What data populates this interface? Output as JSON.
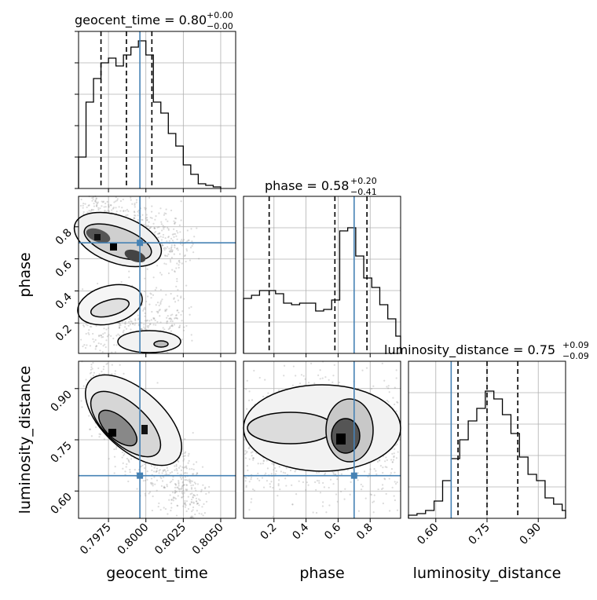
{
  "chart_data": {
    "type": "corner",
    "parameters": [
      "geocent_time",
      "phase",
      "luminosity_distance"
    ],
    "truths": {
      "geocent_time": 0.7996,
      "phase": 0.7,
      "luminosity_distance": 0.645
    },
    "titles": [
      {
        "param": "geocent_time",
        "base": "geocent_time = 0.80",
        "plus": "+0.00",
        "minus": "−0.00"
      },
      {
        "param": "phase",
        "base": "phase = 0.58",
        "plus": "+0.20",
        "minus": "−0.41"
      },
      {
        "param": "luminosity_distance",
        "base": "luminosity_distance = 0.75",
        "plus": "+0.09",
        "minus": "−0.09"
      }
    ],
    "axis_labels": {
      "x": [
        "geocent_time",
        "phase",
        "luminosity_distance"
      ],
      "y": [
        "phase",
        "luminosity_distance"
      ]
    },
    "ranges": {
      "geocent_time": [
        0.7955,
        0.806
      ],
      "phase": [
        0.01,
        0.99
      ],
      "luminosity_distance": [
        0.52,
        0.98
      ]
    },
    "ticks": {
      "geocent_time": {
        "values": [
          0.7975,
          0.8,
          0.8025,
          0.805
        ],
        "labels": [
          "0.7975",
          "0.8000",
          "0.8025",
          "0.8050"
        ]
      },
      "phase_x": {
        "values": [
          0.2,
          0.4,
          0.6,
          0.8
        ],
        "labels": [
          "0.2",
          "0.4",
          "0.6",
          "0.8"
        ]
      },
      "phase_y": {
        "values": [
          0.2,
          0.4,
          0.6,
          0.8
        ],
        "labels": [
          "0.2",
          "0.4",
          "0.6",
          "0.8"
        ]
      },
      "luminosity_distance": {
        "values": [
          0.6,
          0.75,
          0.9
        ],
        "labels": [
          "0.60",
          "0.75",
          "0.90"
        ]
      }
    },
    "histograms": {
      "geocent_time": {
        "edges": [
          0.7955,
          0.796,
          0.7965,
          0.797,
          0.7975,
          0.798,
          0.7985,
          0.799,
          0.7995,
          0.8,
          0.8005,
          0.801,
          0.8015,
          0.802,
          0.8025,
          0.803,
          0.8035,
          0.804,
          0.8045,
          0.805
        ],
        "counts": [
          20,
          55,
          70,
          80,
          83,
          78,
          85,
          90,
          94,
          85,
          55,
          48,
          35,
          27,
          15,
          9,
          3,
          2,
          1
        ],
        "ymax": 100,
        "quantiles": [
          0.797,
          0.7987,
          0.8004
        ]
      },
      "phase": {
        "edges": [
          0.01,
          0.06,
          0.11,
          0.16,
          0.21,
          0.26,
          0.31,
          0.36,
          0.41,
          0.46,
          0.51,
          0.56,
          0.61,
          0.66,
          0.71,
          0.76,
          0.81,
          0.86,
          0.91,
          0.96,
          0.99
        ],
        "counts": [
          35,
          37,
          40,
          40,
          38,
          32,
          31,
          32,
          32,
          27,
          28,
          34,
          78,
          80,
          62,
          48,
          42,
          31,
          22,
          11
        ],
        "ymax": 100,
        "quantiles": [
          0.17,
          0.58,
          0.78
        ]
      },
      "luminosity_distance": {
        "edges": [
          0.52,
          0.545,
          0.57,
          0.595,
          0.62,
          0.645,
          0.67,
          0.695,
          0.72,
          0.745,
          0.77,
          0.795,
          0.82,
          0.845,
          0.87,
          0.895,
          0.92,
          0.945,
          0.97,
          0.98
        ],
        "counts": [
          2,
          3,
          5,
          11,
          24,
          38,
          50,
          62,
          70,
          81,
          76,
          66,
          54,
          39,
          28,
          24,
          13,
          9,
          5
        ],
        "ymax": 100,
        "quantiles": [
          0.665,
          0.75,
          0.84
        ]
      }
    },
    "grid": true
  }
}
